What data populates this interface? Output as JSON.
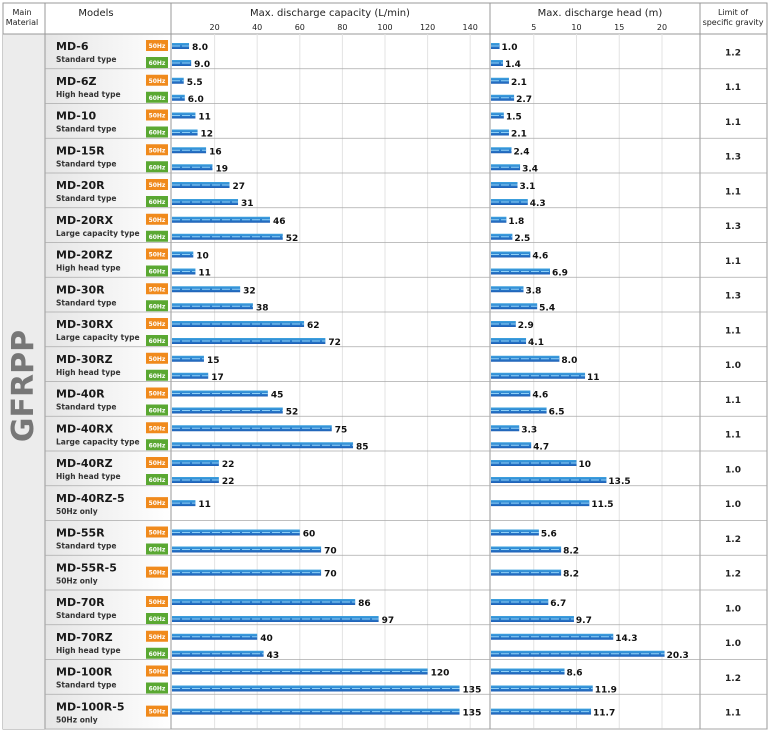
{
  "header": {
    "main_material": [
      "Main",
      "Material"
    ],
    "models": "Models",
    "capacity": "Max. discharge capacity (L/min)",
    "head": "Max. discharge head (m)",
    "gravity": [
      "Limit of",
      "specific gravity"
    ]
  },
  "material": "GFRPP",
  "colors": {
    "hz50": "#f08a1c",
    "hz60": "#5aa832",
    "bar_dark": "#1f5fb5",
    "bar_light": "#3fa4df",
    "row_bg": "#f2f2f2"
  },
  "chart_data": {
    "type": "bar",
    "xlim_capacity": [
      0,
      150
    ],
    "xlim_head": [
      0,
      23
    ],
    "capacity_ticks": [
      20,
      40,
      60,
      80,
      100,
      120,
      140
    ],
    "head_ticks": [
      5,
      10,
      15,
      20
    ],
    "capacity_labels": [
      "8.0",
      "9.0",
      "5.5",
      "6.0",
      "11",
      "12",
      "16",
      "19",
      "27",
      "31",
      "46",
      "52",
      "10",
      "11",
      "32",
      "38",
      "62",
      "72",
      "15",
      "17",
      "45",
      "52",
      "75",
      "85",
      "22",
      "22",
      "11",
      "60",
      "70",
      "70",
      "86",
      "97",
      "40",
      "43",
      "120",
      "135",
      "135"
    ],
    "head_labels": [
      "1.0",
      "1.4",
      "2.1",
      "2.7",
      "1.5",
      "2.1",
      "2.4",
      "3.4",
      "3.1",
      "4.3",
      "1.8",
      "2.5",
      "4.6",
      "6.9",
      "3.8",
      "5.4",
      "2.9",
      "4.1",
      "8.0",
      "11",
      "4.6",
      "6.5",
      "3.3",
      "4.7",
      "10",
      "13.5",
      "11.5",
      "5.6",
      "8.2",
      "8.2",
      "6.7",
      "9.7",
      "14.3",
      "20.3",
      "8.6",
      "11.9",
      "11.7"
    ],
    "gravity_labels": [
      "1.2",
      "1.1",
      "1.1",
      "1.3",
      "1.1",
      "1.3",
      "1.1",
      "1.3",
      "1.1",
      "1.0",
      "1.1",
      "1.1",
      "1.0",
      "1.0",
      "1.2",
      "1.2",
      "1.0",
      "1.0",
      "1.2",
      "1.1"
    ],
    "models": [
      {
        "name": "MD-6",
        "sub": "Standard type",
        "gravity": 1.2,
        "series": [
          {
            "hz": "50Hz",
            "capacity": 8.0,
            "head": 1.0
          },
          {
            "hz": "60Hz",
            "capacity": 9.0,
            "head": 1.4
          }
        ]
      },
      {
        "name": "MD-6Z",
        "sub": "High head type",
        "gravity": 1.1,
        "series": [
          {
            "hz": "50Hz",
            "capacity": 5.5,
            "head": 2.1
          },
          {
            "hz": "60Hz",
            "capacity": 6.0,
            "head": 2.7
          }
        ]
      },
      {
        "name": "MD-10",
        "sub": "Standard type",
        "gravity": 1.1,
        "series": [
          {
            "hz": "50Hz",
            "capacity": 11,
            "head": 1.5
          },
          {
            "hz": "60Hz",
            "capacity": 12,
            "head": 2.1
          }
        ]
      },
      {
        "name": "MD-15R",
        "sub": "Standard type",
        "gravity": 1.3,
        "series": [
          {
            "hz": "50Hz",
            "capacity": 16,
            "head": 2.4
          },
          {
            "hz": "60Hz",
            "capacity": 19,
            "head": 3.4
          }
        ]
      },
      {
        "name": "MD-20R",
        "sub": "Standard type",
        "gravity": 1.1,
        "series": [
          {
            "hz": "50Hz",
            "capacity": 27,
            "head": 3.1
          },
          {
            "hz": "60Hz",
            "capacity": 31,
            "head": 4.3
          }
        ]
      },
      {
        "name": "MD-20RX",
        "sub": "Large capacity type",
        "gravity": 1.3,
        "series": [
          {
            "hz": "50Hz",
            "capacity": 46,
            "head": 1.8
          },
          {
            "hz": "60Hz",
            "capacity": 52,
            "head": 2.5
          }
        ]
      },
      {
        "name": "MD-20RZ",
        "sub": "High head type",
        "gravity": 1.1,
        "series": [
          {
            "hz": "50Hz",
            "capacity": 10,
            "head": 4.6
          },
          {
            "hz": "60Hz",
            "capacity": 11,
            "head": 6.9
          }
        ]
      },
      {
        "name": "MD-30R",
        "sub": "Standard type",
        "gravity": 1.3,
        "series": [
          {
            "hz": "50Hz",
            "capacity": 32,
            "head": 3.8
          },
          {
            "hz": "60Hz",
            "capacity": 38,
            "head": 5.4
          }
        ]
      },
      {
        "name": "MD-30RX",
        "sub": "Large capacity type",
        "gravity": 1.1,
        "series": [
          {
            "hz": "50Hz",
            "capacity": 62,
            "head": 2.9
          },
          {
            "hz": "60Hz",
            "capacity": 72,
            "head": 4.1
          }
        ]
      },
      {
        "name": "MD-30RZ",
        "sub": "High head type",
        "gravity": 1.0,
        "series": [
          {
            "hz": "50Hz",
            "capacity": 15,
            "head": 8.0
          },
          {
            "hz": "60Hz",
            "capacity": 17,
            "head": 11
          }
        ]
      },
      {
        "name": "MD-40R",
        "sub": "Standard type",
        "gravity": 1.1,
        "series": [
          {
            "hz": "50Hz",
            "capacity": 45,
            "head": 4.6
          },
          {
            "hz": "60Hz",
            "capacity": 52,
            "head": 6.5
          }
        ]
      },
      {
        "name": "MD-40RX",
        "sub": "Large capacity type",
        "gravity": 1.1,
        "series": [
          {
            "hz": "50Hz",
            "capacity": 75,
            "head": 3.3
          },
          {
            "hz": "60Hz",
            "capacity": 85,
            "head": 4.7
          }
        ]
      },
      {
        "name": "MD-40RZ",
        "sub": "High head type",
        "gravity": 1.0,
        "series": [
          {
            "hz": "50Hz",
            "capacity": 22,
            "head": 10
          },
          {
            "hz": "60Hz",
            "capacity": 22,
            "head": 13.5
          }
        ]
      },
      {
        "name": "MD-40RZ-5",
        "sub": "50Hz only",
        "gravity": 1.0,
        "series": [
          {
            "hz": "50Hz",
            "capacity": 11,
            "head": 11.5
          }
        ]
      },
      {
        "name": "MD-55R",
        "sub": "Standard type",
        "gravity": 1.2,
        "series": [
          {
            "hz": "50Hz",
            "capacity": 60,
            "head": 5.6
          },
          {
            "hz": "60Hz",
            "capacity": 70,
            "head": 8.2
          }
        ]
      },
      {
        "name": "MD-55R-5",
        "sub": "50Hz only",
        "gravity": 1.2,
        "series": [
          {
            "hz": "50Hz",
            "capacity": 70,
            "head": 8.2
          }
        ]
      },
      {
        "name": "MD-70R",
        "sub": "Standard type",
        "gravity": 1.0,
        "series": [
          {
            "hz": "50Hz",
            "capacity": 86,
            "head": 6.7
          },
          {
            "hz": "60Hz",
            "capacity": 97,
            "head": 9.7
          }
        ]
      },
      {
        "name": "MD-70RZ",
        "sub": "High head type",
        "gravity": 1.0,
        "series": [
          {
            "hz": "50Hz",
            "capacity": 40,
            "head": 14.3
          },
          {
            "hz": "60Hz",
            "capacity": 43,
            "head": 20.3
          }
        ]
      },
      {
        "name": "MD-100R",
        "sub": "Standard type",
        "gravity": 1.2,
        "series": [
          {
            "hz": "50Hz",
            "capacity": 120,
            "head": 8.6
          },
          {
            "hz": "60Hz",
            "capacity": 135,
            "head": 11.9
          }
        ]
      },
      {
        "name": "MD-100R-5",
        "sub": "50Hz only",
        "gravity": 1.1,
        "series": [
          {
            "hz": "50Hz",
            "capacity": 135,
            "head": 11.7
          }
        ]
      }
    ]
  }
}
